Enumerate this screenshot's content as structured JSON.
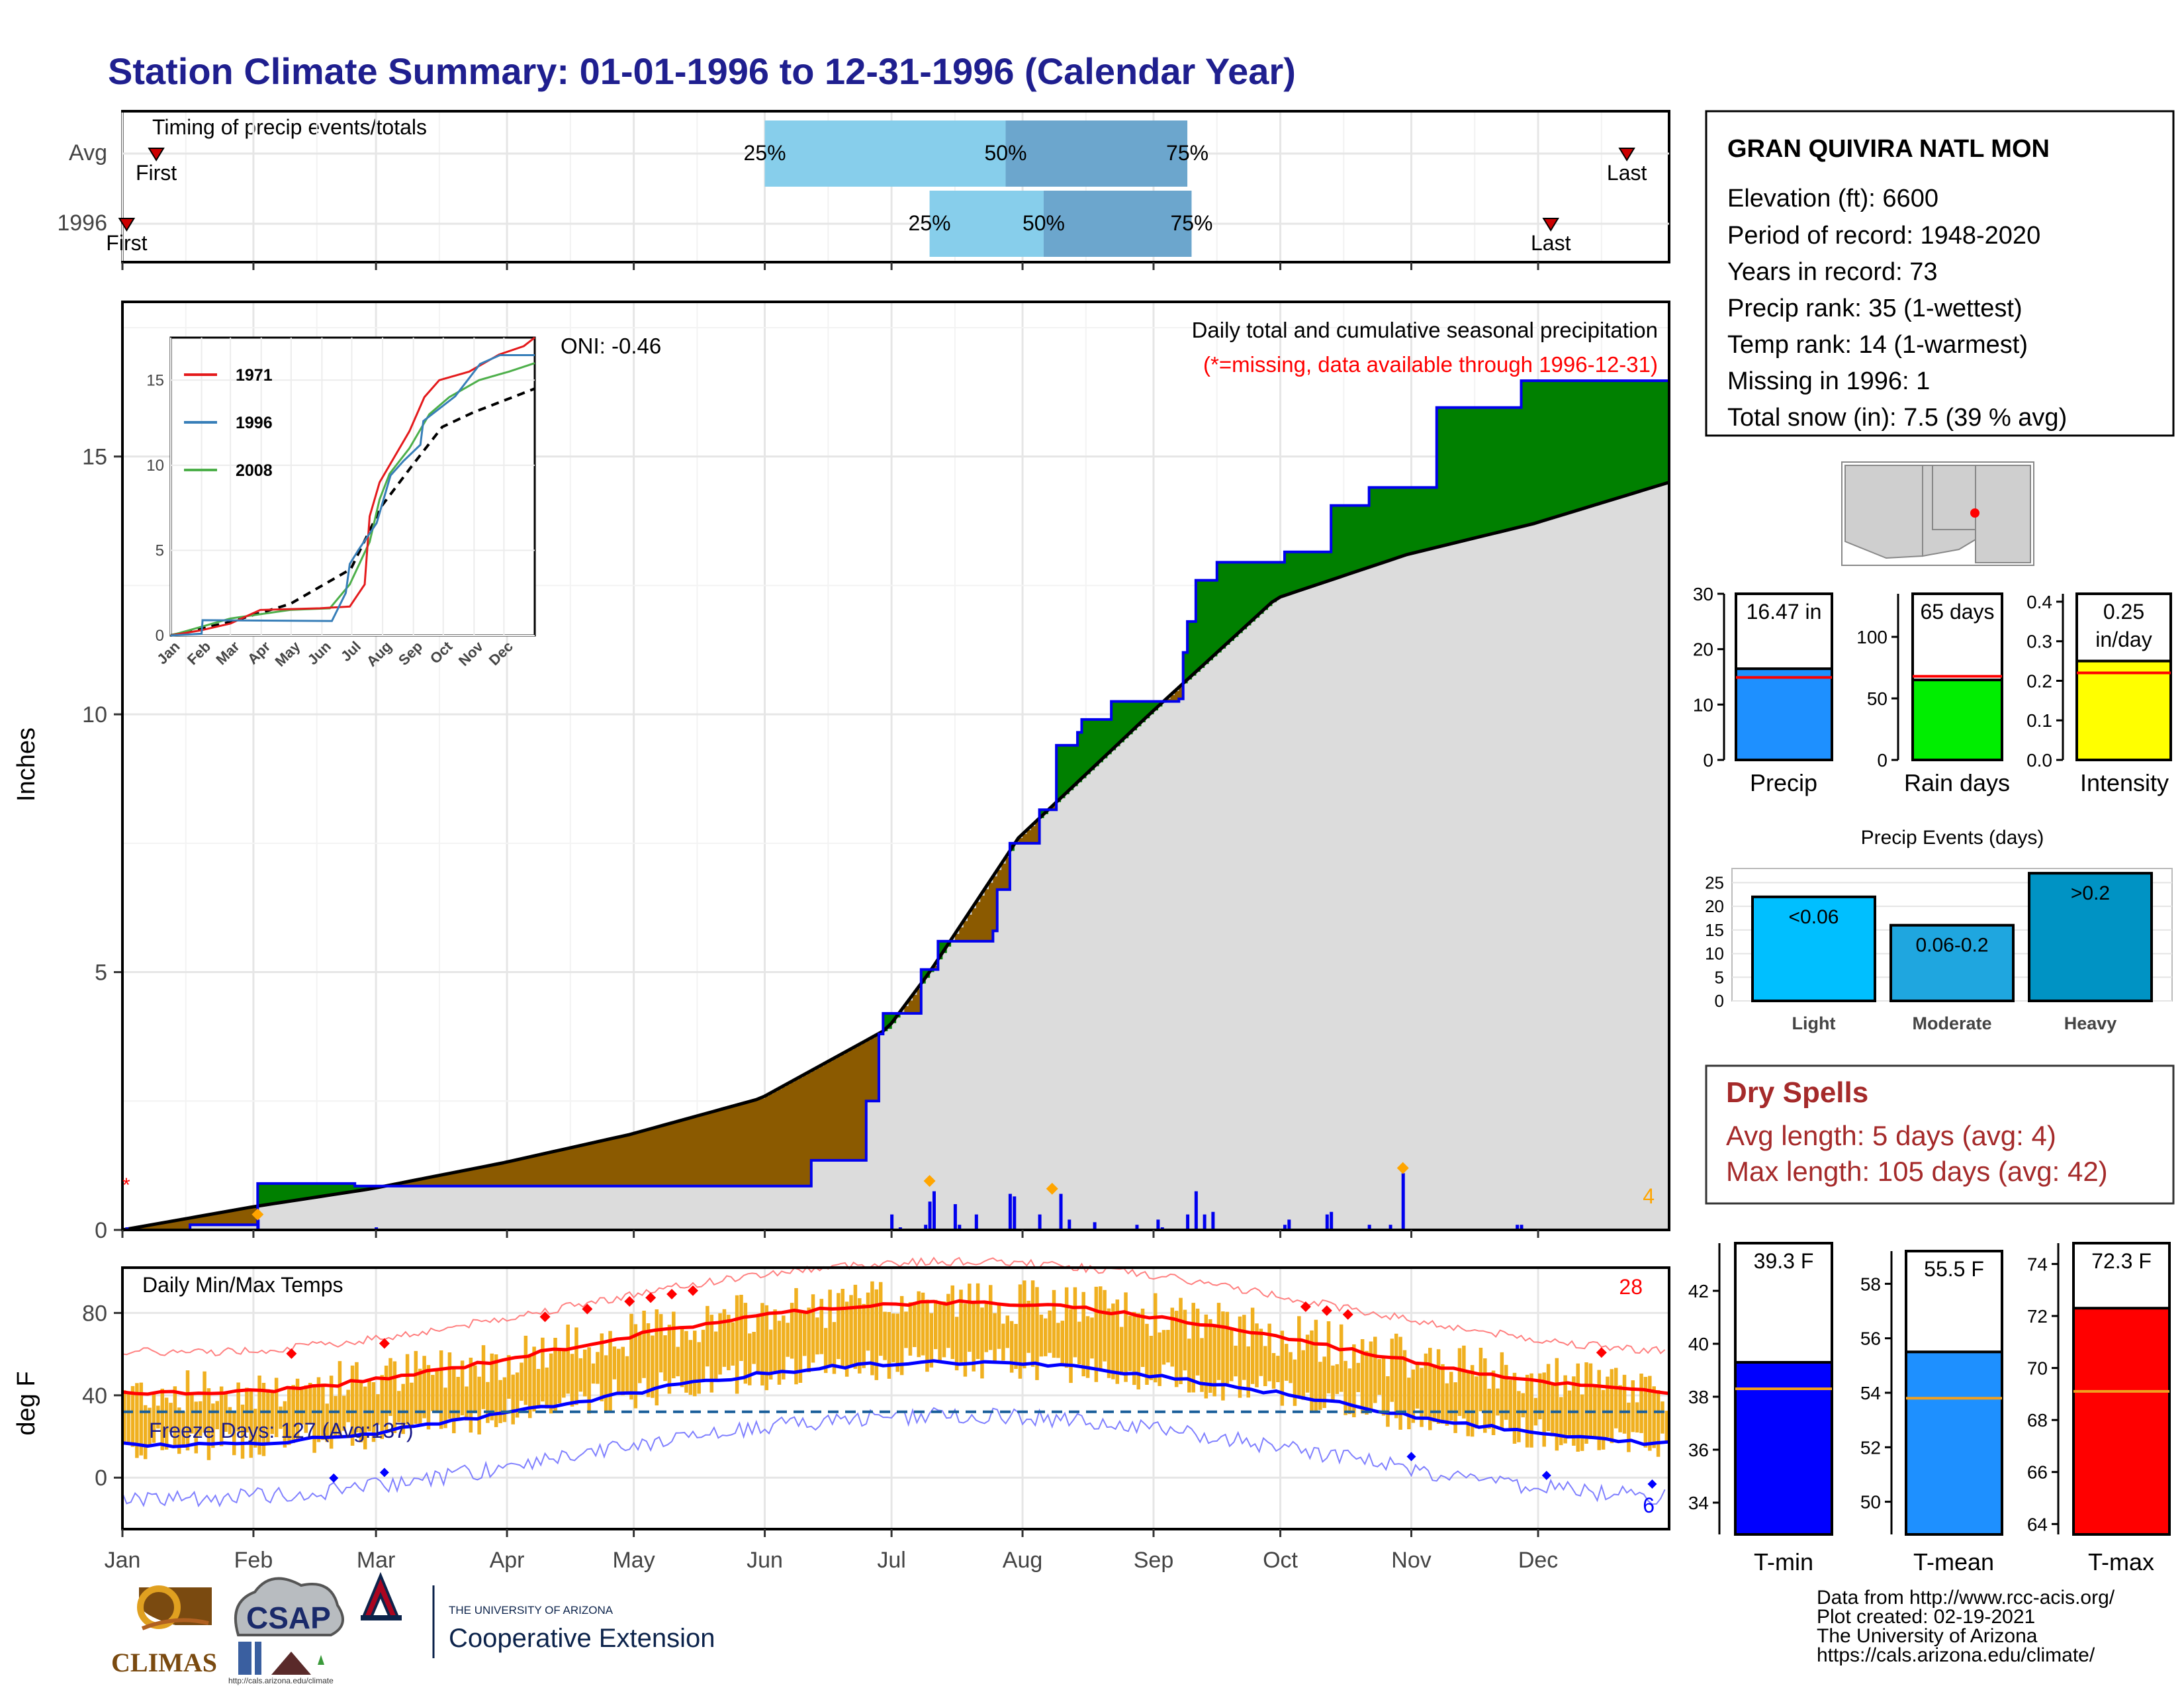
{
  "title": "Station Climate Summary: 01-01-1996 to 12-31-1996 (Calendar Year)",
  "station": {
    "name": "GRAN QUIVIRA NATL MON",
    "lines": [
      "Elevation (ft): 6600",
      "Period of record: 1948-2020",
      "Years in record: 73",
      "Precip rank: 35 (1-wettest)",
      "Temp rank: 14 (1-warmest)",
      "Missing in 1996: 1",
      "Total snow (in): 7.5 (39 % avg)"
    ]
  },
  "dry_spells": {
    "title": "Dry Spells",
    "avg_length": "Avg length: 5 days (avg: 4)",
    "max_length": "Max length: 105 days (avg: 42)"
  },
  "footer": {
    "lines": [
      "Data from http://www.rcc-acis.org/",
      "Plot created: 02-19-2021",
      "The University of Arizona",
      "https://cals.arizona.edu/climate/"
    ],
    "logos": {
      "climas": "CLIMAS",
      "csap": "CSAP",
      "csap_url": "http://cals.arizona.edu/climate",
      "ua_small": "THE UNIVERSITY OF ARIZONA",
      "ua_big": "Cooperative Extension"
    }
  },
  "colors": {
    "title": "#1f1f8f",
    "green": "#008000",
    "brown": "#8b5a00",
    "grey": "#dcdcdc",
    "blue": "#0000ee",
    "orange": "#f0b020",
    "red": "#ff0000",
    "dryspell": "#a52a2a"
  },
  "chart_data": [
    {
      "type": "timeline",
      "id": "timing",
      "title": "Timing of precip events/totals",
      "rows": [
        "Avg",
        "1996"
      ],
      "markers": [
        "First",
        "Last",
        "25%",
        "50%",
        "75%"
      ],
      "avg": {
        "first_doy": 8,
        "q25_doy": 152,
        "q50_doy": 209,
        "q75_doy": 252,
        "last_doy": 356
      },
      "y1996": {
        "first_doy": 1,
        "q25_doy": 191,
        "q50_doy": 218,
        "q75_doy": 253,
        "last_doy": 338
      }
    },
    {
      "type": "area",
      "id": "precip",
      "title": "Daily total and cumulative seasonal precipitation",
      "note": "(*=missing, data available through 1996-12-31)",
      "oni": "ONI: -0.46",
      "ylabel": "Inches",
      "ylim": [
        0,
        18
      ],
      "yticks": [
        0,
        5,
        10,
        15
      ],
      "months": [
        "Jan",
        "Feb",
        "Mar",
        "Apr",
        "May",
        "Jun",
        "Jul",
        "Aug",
        "Sep",
        "Oct",
        "Nov",
        "Dec"
      ],
      "corner_count": "4",
      "cumulative_1996": [
        [
          0,
          0
        ],
        [
          16,
          0.1
        ],
        [
          31,
          0.1
        ],
        [
          32,
          0.9
        ],
        [
          54,
          0.9
        ],
        [
          55,
          0.85
        ],
        [
          120,
          0.85
        ],
        [
          162,
          0.85
        ],
        [
          163,
          1.35
        ],
        [
          175,
          1.35
        ],
        [
          176,
          2.5
        ],
        [
          179,
          3.8
        ],
        [
          180,
          4.2
        ],
        [
          188,
          4.2
        ],
        [
          189,
          5.05
        ],
        [
          193,
          5.6
        ],
        [
          206,
          5.8
        ],
        [
          207,
          6.6
        ],
        [
          210,
          7.5
        ],
        [
          216,
          7.5
        ],
        [
          217,
          8.15
        ],
        [
          221,
          9.4
        ],
        [
          225,
          9.4
        ],
        [
          226,
          9.65
        ],
        [
          227,
          9.9
        ],
        [
          233,
          9.9
        ],
        [
          234,
          10.25
        ],
        [
          250,
          10.3
        ],
        [
          251,
          11.2
        ],
        [
          252,
          11.8
        ],
        [
          254,
          12.6
        ],
        [
          258,
          12.6
        ],
        [
          259,
          12.95
        ],
        [
          273,
          12.95
        ],
        [
          275,
          13.15
        ],
        [
          285,
          13.15
        ],
        [
          286,
          14.05
        ],
        [
          294,
          14.05
        ],
        [
          295,
          14.4
        ],
        [
          310,
          14.4
        ],
        [
          311,
          15.95
        ],
        [
          330,
          15.95
        ],
        [
          331,
          16.47
        ],
        [
          366,
          16.47
        ]
      ],
      "cumulative_avg": [
        [
          0,
          0
        ],
        [
          31,
          0.45
        ],
        [
          59,
          0.8
        ],
        [
          90,
          1.3
        ],
        [
          120,
          1.85
        ],
        [
          151,
          2.55
        ],
        [
          181,
          3.9
        ],
        [
          191,
          5.0
        ],
        [
          212,
          7.6
        ],
        [
          243,
          10.0
        ],
        [
          273,
          12.25
        ],
        [
          304,
          13.1
        ],
        [
          334,
          13.7
        ],
        [
          366,
          14.5
        ]
      ],
      "daily_bars": [
        [
          1,
          0.05
        ],
        [
          32,
          0.2
        ],
        [
          60,
          0.05
        ],
        [
          182,
          0.3
        ],
        [
          184,
          0.05
        ],
        [
          190,
          0.1
        ],
        [
          191,
          0.55
        ],
        [
          192,
          0.75
        ],
        [
          197,
          0.5
        ],
        [
          198,
          0.1
        ],
        [
          202,
          0.3
        ],
        [
          210,
          0.7
        ],
        [
          211,
          0.65
        ],
        [
          217,
          0.3
        ],
        [
          222,
          0.7
        ],
        [
          224,
          0.2
        ],
        [
          230,
          0.15
        ],
        [
          240,
          0.1
        ],
        [
          245,
          0.2
        ],
        [
          246,
          0.05
        ],
        [
          252,
          0.3
        ],
        [
          254,
          0.75
        ],
        [
          256,
          0.3
        ],
        [
          258,
          0.35
        ],
        [
          275,
          0.1
        ],
        [
          276,
          0.2
        ],
        [
          285,
          0.3
        ],
        [
          286,
          0.35
        ],
        [
          295,
          0.1
        ],
        [
          300,
          0.1
        ],
        [
          303,
          1.1
        ],
        [
          330,
          0.1
        ],
        [
          331,
          0.1
        ]
      ],
      "extreme_markers": [
        [
          32,
          0.3
        ],
        [
          191,
          0.95
        ],
        [
          220,
          0.8
        ],
        [
          303,
          1.2
        ]
      ]
    },
    {
      "type": "line",
      "id": "inset",
      "series": [
        {
          "name": "1971",
          "color": "#e41a1c"
        },
        {
          "name": "1996",
          "color": "#377eb8"
        },
        {
          "name": "2008",
          "color": "#4daf4a"
        }
      ],
      "xticks": [
        "Jan",
        "Feb",
        "Mar",
        "Apr",
        "May",
        "Jun",
        "Jul",
        "Aug",
        "Sep",
        "Oct",
        "Nov",
        "Dec"
      ],
      "yticks": [
        0,
        5,
        10,
        15
      ],
      "ylim": [
        0,
        17.5
      ],
      "s1971": [
        [
          0,
          0
        ],
        [
          30,
          0.3
        ],
        [
          60,
          0.7
        ],
        [
          90,
          1.5
        ],
        [
          150,
          1.6
        ],
        [
          180,
          1.7
        ],
        [
          195,
          3
        ],
        [
          200,
          7
        ],
        [
          210,
          9
        ],
        [
          225,
          10.5
        ],
        [
          240,
          12
        ],
        [
          255,
          14
        ],
        [
          270,
          15
        ],
        [
          300,
          15.5
        ],
        [
          330,
          16.5
        ],
        [
          355,
          17
        ],
        [
          366,
          17.5
        ]
      ],
      "s1996": [
        [
          0,
          0
        ],
        [
          31,
          0.1
        ],
        [
          32,
          0.9
        ],
        [
          162,
          0.85
        ],
        [
          176,
          2.5
        ],
        [
          180,
          4.2
        ],
        [
          189,
          5.05
        ],
        [
          207,
          6.6
        ],
        [
          221,
          9.4
        ],
        [
          234,
          10.25
        ],
        [
          251,
          11.2
        ],
        [
          254,
          12.6
        ],
        [
          286,
          14.05
        ],
        [
          311,
          15.95
        ],
        [
          331,
          16.47
        ],
        [
          366,
          16.47
        ]
      ],
      "s2008": [
        [
          0,
          0
        ],
        [
          30,
          0.5
        ],
        [
          60,
          1
        ],
        [
          120,
          1.5
        ],
        [
          160,
          1.6
        ],
        [
          180,
          3
        ],
        [
          200,
          5.5
        ],
        [
          210,
          8
        ],
        [
          220,
          9.5
        ],
        [
          240,
          11
        ],
        [
          260,
          13
        ],
        [
          280,
          14
        ],
        [
          310,
          15
        ],
        [
          340,
          15.5
        ],
        [
          366,
          16
        ]
      ],
      "avg": [
        [
          0,
          0
        ],
        [
          60,
          0.8
        ],
        [
          120,
          1.85
        ],
        [
          181,
          3.9
        ],
        [
          212,
          7.6
        ],
        [
          243,
          10
        ],
        [
          273,
          12.25
        ],
        [
          304,
          13.1
        ],
        [
          366,
          14.5
        ]
      ]
    },
    {
      "type": "line",
      "id": "temps",
      "title": "Daily Min/Max Temps",
      "freeze_label": "Freeze Days: 127 (Avg:137)",
      "ylabel": "deg F",
      "ylim": [
        -25,
        102
      ],
      "yticks": [
        0,
        40,
        80
      ],
      "freeze_line": 32,
      "count_high": "28",
      "count_low": "6"
    },
    {
      "type": "bar",
      "id": "precip_small",
      "xlabel": "Precip",
      "value": 16.47,
      "label": "16.47 in",
      "avg": 14.9,
      "ylim": [
        0,
        30
      ],
      "yticks": [
        0,
        10,
        20,
        30
      ],
      "color": "#1e90ff"
    },
    {
      "type": "bar",
      "id": "raindays_small",
      "xlabel": "Rain days",
      "value": 65,
      "label": "65 days",
      "avg": 68,
      "ylim": [
        0,
        135
      ],
      "yticks": [
        0,
        50,
        100
      ],
      "color": "#00ee00"
    },
    {
      "type": "bar",
      "id": "intensity_small",
      "xlabel": "Intensity",
      "value": 0.25,
      "label": "0.25",
      "label2": "in/day",
      "avg": 0.22,
      "ylim": [
        0,
        0.42
      ],
      "yticks": [
        "0.0",
        "0.1",
        "0.2",
        "0.3",
        "0.4"
      ],
      "color": "#ffff00"
    },
    {
      "type": "bar",
      "id": "events",
      "title": "Precip Events (days)",
      "categories": [
        "Light",
        "Moderate",
        "Heavy"
      ],
      "labels": [
        "<0.06",
        "0.06-0.2",
        ">0.2"
      ],
      "values": [
        22,
        16,
        27
      ],
      "ylim": [
        0,
        28
      ],
      "yticks": [
        0,
        5,
        10,
        15,
        20,
        25
      ],
      "colors": [
        "#00bfff",
        "#1fa6df",
        "#0093c4"
      ]
    },
    {
      "type": "bar",
      "id": "tmin_small",
      "xlabel": "T-min",
      "value": 39.3,
      "label": "39.3 F",
      "avg": 38.3,
      "ylim": [
        32.8,
        43.8
      ],
      "yticks": [
        34,
        36,
        38,
        40,
        42
      ],
      "color": "#0000ff"
    },
    {
      "type": "bar",
      "id": "tmean_small",
      "xlabel": "T-mean",
      "value": 55.5,
      "label": "55.5 F",
      "avg": 53.8,
      "ylim": [
        48.8,
        59.2
      ],
      "yticks": [
        50,
        52,
        54,
        56,
        58
      ],
      "color": "#1e90ff"
    },
    {
      "type": "bar",
      "id": "tmax_small",
      "xlabel": "T-max",
      "value": 72.3,
      "label": "72.3 F",
      "avg": 69.1,
      "ylim": [
        63.6,
        74.8
      ],
      "yticks": [
        64,
        66,
        68,
        70,
        72,
        74
      ],
      "color": "#ff0000"
    }
  ]
}
